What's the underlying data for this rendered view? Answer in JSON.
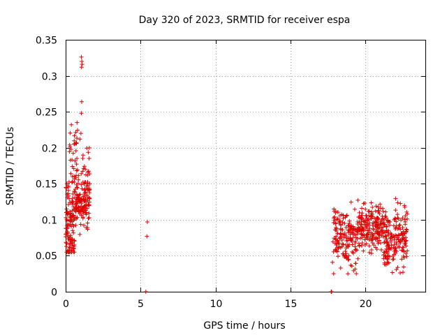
{
  "chart_data": {
    "type": "scatter",
    "title": "Day 320 of 2023, SRMTID for receiver espa",
    "xlabel": "GPS time / hours",
    "ylabel": "SRMTID / TECUs",
    "xlim": [
      0,
      24
    ],
    "ylim": [
      0,
      0.35
    ],
    "xticks": [
      0,
      5,
      10,
      15,
      20
    ],
    "xtick_labels": [
      "0",
      "5",
      "10",
      "15",
      "20"
    ],
    "yticks": [
      0,
      0.05,
      0.1,
      0.15,
      0.2,
      0.25,
      0.3,
      0.35
    ],
    "ytick_labels": [
      "0",
      "0.05",
      "0.1",
      "0.15",
      "0.2",
      "0.25",
      "0.3",
      "0.35"
    ],
    "grid": true,
    "marker": "plus",
    "color": "#e00000",
    "series": [
      {
        "name": "SRMTID",
        "clusters": [
          {
            "x_range": [
              0.0,
              0.6
            ],
            "count": 120,
            "y_mean": 0.095,
            "y_sd": 0.03,
            "y_range": [
              0.055,
              0.165
            ]
          },
          {
            "x_range": [
              0.25,
              0.8
            ],
            "count": 30,
            "y_mean": 0.19,
            "y_sd": 0.02,
            "y_range": [
              0.16,
              0.235
            ]
          },
          {
            "x_range": [
              0.6,
              1.6
            ],
            "count": 140,
            "y_mean": 0.125,
            "y_sd": 0.018,
            "y_range": [
              0.07,
              0.2
            ]
          },
          {
            "x_range": [
              1.1,
              1.65
            ],
            "count": 18,
            "y_mean": 0.175,
            "y_sd": 0.02,
            "y_range": [
              0.15,
              0.205
            ]
          },
          {
            "x_range": [
              17.8,
              19.5
            ],
            "count": 170,
            "y_mean": 0.075,
            "y_sd": 0.02,
            "y_range": [
              0.025,
              0.13
            ]
          },
          {
            "x_range": [
              19.5,
              21.2
            ],
            "count": 190,
            "y_mean": 0.09,
            "y_sd": 0.015,
            "y_range": [
              0.045,
              0.14
            ]
          },
          {
            "x_range": [
              21.2,
              22.8
            ],
            "count": 180,
            "y_mean": 0.075,
            "y_sd": 0.022,
            "y_range": [
              0.022,
              0.148
            ]
          }
        ],
        "points": [
          [
            1.05,
            0.326
          ],
          [
            1.08,
            0.32
          ],
          [
            1.1,
            0.316
          ],
          [
            1.06,
            0.312
          ],
          [
            1.07,
            0.264
          ],
          [
            1.05,
            0.248
          ],
          [
            1.02,
            0.22
          ],
          [
            0.95,
            0.212
          ],
          [
            0.38,
            0.232
          ],
          [
            5.35,
            0.0
          ],
          [
            5.42,
            0.077
          ],
          [
            5.45,
            0.097
          ],
          [
            17.72,
            0.0
          ],
          [
            17.75,
            0.0
          ]
        ]
      }
    ]
  }
}
